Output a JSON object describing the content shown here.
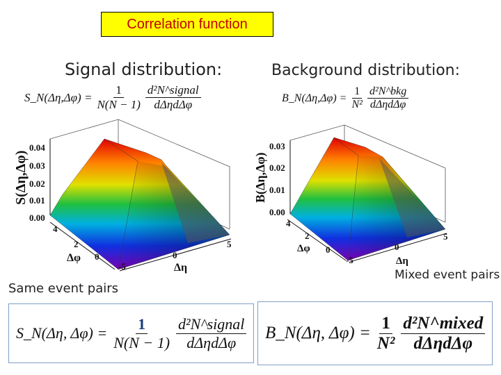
{
  "header": {
    "title": "Correlation function"
  },
  "signal_panel": {
    "title": "Signal distribution:",
    "formula": {
      "lhs": "S_N(Δη,Δφ) =",
      "num1": "1",
      "den1": "N(N − 1)",
      "num2": "d²N^signal",
      "den2": "dΔηdΔφ"
    },
    "z_axis_label": "S(Δη,Δφ)",
    "z_ticks": [
      "0.04",
      "0.03",
      "0.02",
      "0.01",
      "0.00"
    ],
    "dphi_ticks": [
      "4",
      "2",
      "0"
    ],
    "dphi_label": "Δφ",
    "deta_ticks": [
      "-5",
      "0",
      "5"
    ],
    "deta_label": "Δη",
    "caption": "Same event pairs"
  },
  "background_panel": {
    "title": "Background distribution:",
    "formula": {
      "lhs": "B_N(Δη,Δφ) =",
      "num1": "1",
      "den1": "N²",
      "num2": "d²N^bkg",
      "den2": "dΔηdΔφ"
    },
    "z_axis_label": "B(Δη,Δφ)",
    "z_ticks": [
      "0.03",
      "0.02",
      "0.01",
      "0.00"
    ],
    "dphi_ticks": [
      "4",
      "2",
      "0"
    ],
    "dphi_label": "Δφ",
    "deta_ticks": [
      "-5",
      "0",
      "5"
    ],
    "deta_label": "Δη",
    "caption": "Mixed event pairs"
  },
  "bottom_formulas": {
    "same": {
      "lhs": "S_N(Δη, Δφ) =",
      "num1": "1",
      "den1": "N(N − 1)",
      "num2": "d²N^signal",
      "den2": "dΔηdΔφ"
    },
    "mixed": {
      "lhs": "B_N(Δη, Δφ) =",
      "num1": "1",
      "den1": "N²",
      "num2": "d²N^mixed",
      "den2": "dΔηdΔφ"
    }
  },
  "colors": {
    "title_bg": "#ffff00",
    "title_text": "#c00000",
    "formula_box_border": "#7f9fc9"
  }
}
